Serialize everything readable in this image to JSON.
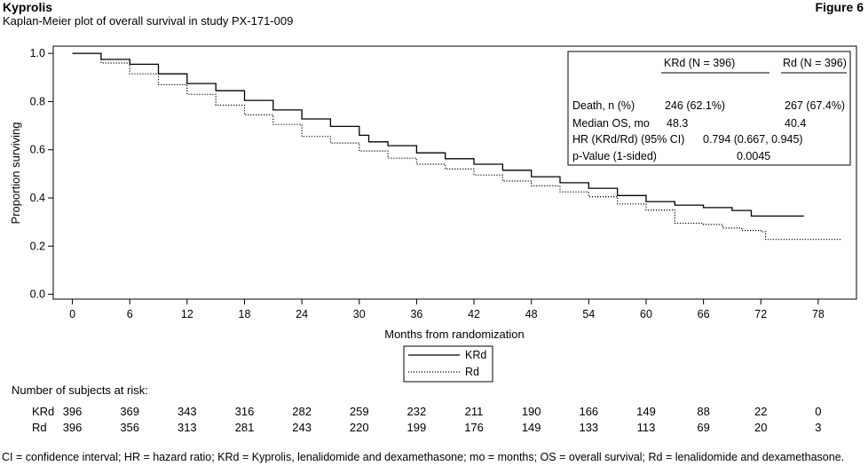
{
  "header": {
    "brand": "Kyprolis",
    "figure": "Figure 6",
    "subtitle": "Kaplan-Meier plot of overall survival in study PX-171-009"
  },
  "chart_data": {
    "type": "line",
    "xlabel": "Months from randomization",
    "ylabel": "Proportion surviving",
    "xlim": [
      -2,
      82
    ],
    "ylim": [
      -0.02,
      1.03
    ],
    "xticks": [
      0,
      6,
      12,
      18,
      24,
      30,
      36,
      42,
      48,
      54,
      60,
      66,
      72,
      78
    ],
    "yticks": [
      0.0,
      0.2,
      0.4,
      0.6,
      0.8,
      1.0
    ],
    "ytick_labels": [
      "0.0",
      "0.2",
      "0.4",
      "0.6",
      "0.8",
      "1.0"
    ],
    "series": [
      {
        "name": "KRd",
        "style": "solid",
        "color": "#000000",
        "x": [
          0,
          3,
          6,
          9,
          12,
          15,
          18,
          21,
          24,
          27,
          30,
          31,
          33,
          36,
          39,
          42,
          45,
          48,
          51,
          54,
          57,
          60,
          63,
          66,
          69,
          71,
          74,
          76,
          76.5
        ],
        "y": [
          1.0,
          0.975,
          0.955,
          0.915,
          0.875,
          0.845,
          0.805,
          0.765,
          0.728,
          0.697,
          0.66,
          0.633,
          0.617,
          0.587,
          0.563,
          0.54,
          0.515,
          0.488,
          0.463,
          0.44,
          0.41,
          0.385,
          0.37,
          0.36,
          0.348,
          0.325,
          0.325,
          0.325,
          0.325
        ]
      },
      {
        "name": "Rd",
        "style": "dotted",
        "color": "#000000",
        "x": [
          0,
          3,
          6,
          9,
          12,
          15,
          18,
          21,
          24,
          27,
          30,
          33,
          36,
          39,
          42,
          45,
          48,
          51,
          54,
          57,
          60,
          63,
          66,
          68,
          70,
          72,
          72.5,
          74,
          80.5
        ],
        "y": [
          1.0,
          0.96,
          0.915,
          0.87,
          0.83,
          0.785,
          0.745,
          0.705,
          0.655,
          0.628,
          0.595,
          0.565,
          0.54,
          0.52,
          0.495,
          0.47,
          0.45,
          0.425,
          0.405,
          0.375,
          0.35,
          0.295,
          0.29,
          0.275,
          0.265,
          0.26,
          0.228,
          0.228,
          0.228
        ]
      }
    ],
    "legend": {
      "placement": "bottom-center",
      "entries": [
        "KRd",
        "Rd"
      ]
    },
    "stats_box": {
      "col_headers": [
        "KRd (N = 396)",
        "Rd (N = 396)"
      ],
      "rows": [
        {
          "label": "Death, n (%)",
          "krd": "246 (62.1%)",
          "rd": "267 (67.4%)"
        },
        {
          "label": "Median OS, mo",
          "krd": "48.3",
          "rd": "40.4"
        },
        {
          "label": "HR (KRd/Rd) (95% CI)",
          "combined": "0.794 (0.667, 0.945)"
        },
        {
          "label": "p-Value (1-sided)",
          "combined": "0.0045"
        }
      ]
    }
  },
  "risk_table": {
    "title": "Number of subjects at risk:",
    "rows": [
      {
        "label": "KRd",
        "values": [
          "396",
          "369",
          "343",
          "316",
          "282",
          "259",
          "232",
          "211",
          "190",
          "166",
          "149",
          "88",
          "22",
          "0"
        ]
      },
      {
        "label": "Rd",
        "values": [
          "396",
          "356",
          "313",
          "281",
          "243",
          "220",
          "199",
          "176",
          "149",
          "133",
          "113",
          "69",
          "20",
          "3"
        ]
      }
    ]
  },
  "footnote": "CI = confidence interval; HR = hazard ratio; KRd = Kyprolis, lenalidomide and dexamethasone; mo = months; OS = overall survival; Rd = lenalidomide and dexamethasone."
}
